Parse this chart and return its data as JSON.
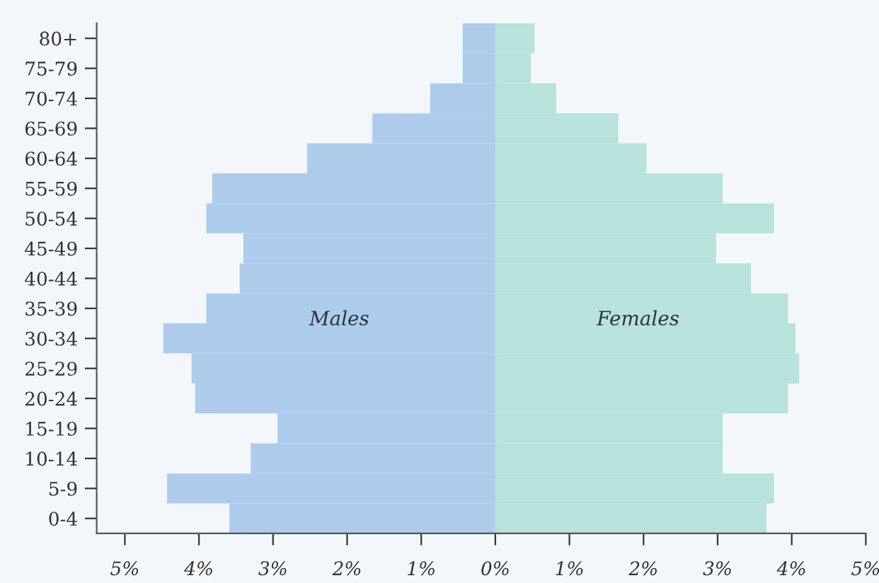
{
  "chart_data": {
    "type": "bar",
    "orientation": "horizontal",
    "stacked": true,
    "categories": [
      "80+",
      "75-79",
      "70-74",
      "65-69",
      "60-64",
      "55-59",
      "50-54",
      "45-49",
      "40-44",
      "35-39",
      "30-34",
      "25-29",
      "20-24",
      "15-19",
      "10-14",
      "5-9",
      "0-4"
    ],
    "series": [
      {
        "name": "Males",
        "color": "#aecbeb",
        "values": [
          -0.44,
          -0.44,
          -0.88,
          -1.66,
          -2.54,
          -3.82,
          -3.9,
          -3.4,
          -3.45,
          -3.9,
          -4.48,
          -4.1,
          -4.05,
          -2.94,
          -3.3,
          -4.43,
          -3.59
        ]
      },
      {
        "name": "Females",
        "color": "#b8e2dc",
        "values": [
          0.53,
          0.48,
          0.82,
          1.66,
          2.04,
          3.07,
          3.76,
          2.98,
          3.45,
          3.95,
          4.05,
          4.1,
          3.95,
          3.07,
          3.07,
          3.76,
          3.66
        ]
      }
    ],
    "xlim": [
      -5.38,
      5.0
    ],
    "xticks": [
      {
        "value": -5,
        "label": "5%"
      },
      {
        "value": -4,
        "label": "4%"
      },
      {
        "value": -3,
        "label": "3%"
      },
      {
        "value": -2,
        "label": "2%"
      },
      {
        "value": -1,
        "label": "1%"
      },
      {
        "value": 0,
        "label": "0%"
      },
      {
        "value": 1,
        "label": "1%"
      },
      {
        "value": 2,
        "label": "2%"
      },
      {
        "value": 3,
        "label": "3%"
      },
      {
        "value": 4,
        "label": "4%"
      },
      {
        "value": 5,
        "label": "5%"
      }
    ],
    "grid": false,
    "legend": false
  }
}
